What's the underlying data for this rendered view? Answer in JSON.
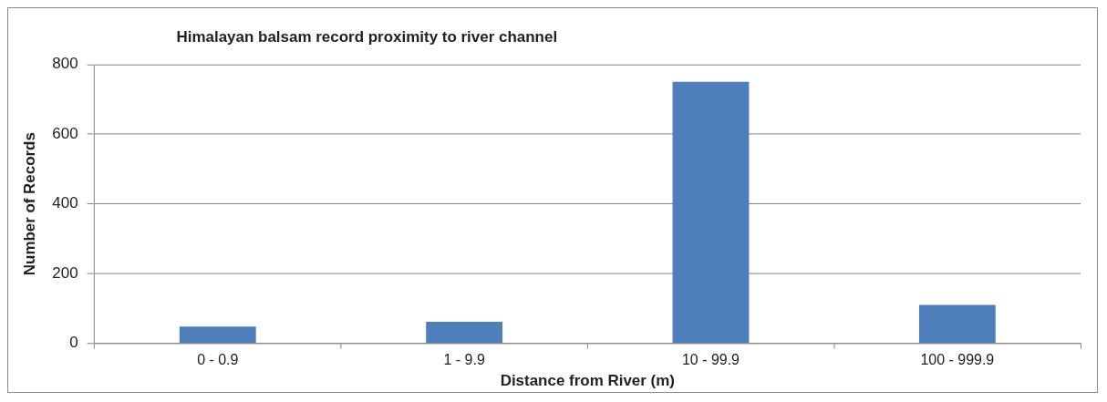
{
  "chart_data": {
    "type": "bar",
    "title": "Himalayan balsam record proximity to river channel",
    "xlabel": "Distance from River (m)",
    "ylabel": "Number of Records",
    "categories": [
      "0 - 0.9",
      "1 - 9.9",
      "10 - 99.9",
      "100 - 999.9"
    ],
    "values": [
      48,
      62,
      750,
      110
    ],
    "color": "#4f7fba",
    "ylim": [
      0,
      800
    ],
    "yticks": [
      0,
      200,
      400,
      600,
      800
    ],
    "grid": "y",
    "legend": false
  }
}
